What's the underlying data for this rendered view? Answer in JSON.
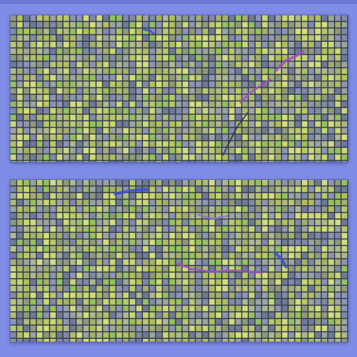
{
  "colors": {
    "background": "#7f8de6",
    "cell_palette": [
      "#b9c86a",
      "#a3b06c",
      "#8f9a7a",
      "#c8d772",
      "#9aa4a0",
      "#7f8aa8",
      "#d2dc7c",
      "#6f7a96",
      "#aeb98a",
      "#93c25c",
      "#b0bf5e",
      "#8c95b4"
    ],
    "accent_line": "#a04ac8",
    "accent_blue": "#3b4fd0",
    "grid_line": "#3a3f4e"
  },
  "panels": [
    {
      "id": "top",
      "icon": "pixel-grid-image"
    },
    {
      "id": "bottom",
      "icon": "pixel-grid-image"
    }
  ]
}
